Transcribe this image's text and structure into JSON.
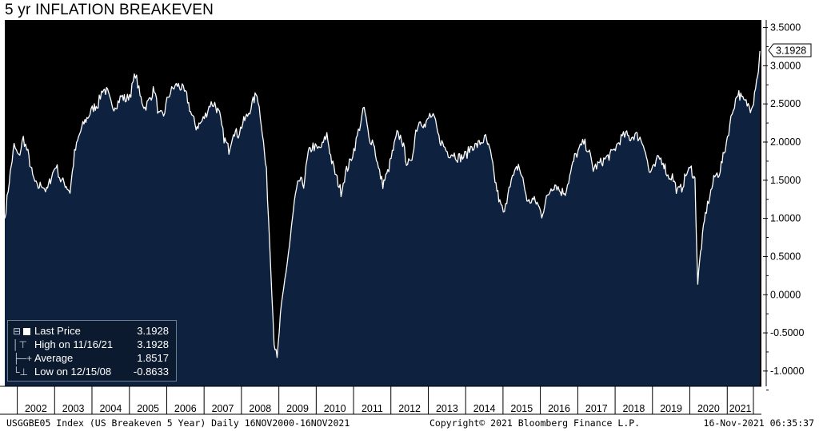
{
  "title": "5 yr INFLATION BREAKEVEN",
  "footer": {
    "left": "USGGBE05 Index (US Breakeven 5 Year)  Daily 16NOV2000-16NOV2021",
    "center": "Copyright© 2021 Bloomberg Finance L.P.",
    "right": "16-Nov-2021 06:35:37"
  },
  "legend": {
    "items": [
      {
        "label": "Last Price",
        "value": "3.1928",
        "icon": "white-square-icon"
      },
      {
        "label": "High on 11/16/21",
        "value": "3.1928",
        "icon": "high-marker-icon"
      },
      {
        "label": "Average",
        "value": "1.8517",
        "icon": "average-line-icon"
      },
      {
        "label": "Low on 12/15/08",
        "value": "-0.8633",
        "icon": "low-marker-icon"
      }
    ]
  },
  "colors": {
    "plot_background": "#000000",
    "area_fill": "#0e2240",
    "line": "#ffffff",
    "axis_text": "#ffffff",
    "page_background": "#ffffff"
  },
  "chart_data": {
    "type": "area",
    "title": "5 yr INFLATION BREAKEVEN",
    "series_name": "USGGBE05 Index",
    "xlabel": "",
    "ylabel": "",
    "xlim": [
      "2001-09-01",
      "2021-12-01"
    ],
    "ylim": [
      -1.2,
      3.6
    ],
    "y_ticks": [
      3.5,
      3.0,
      2.5,
      2.0,
      1.5,
      1.0,
      0.5,
      0.0,
      -0.5,
      -1.0
    ],
    "y_tick_labels": [
      "3.5000",
      "3.0000",
      "2.5000",
      "2.0000",
      "1.5000",
      "1.0000",
      "0.5000",
      "0.0000",
      "-0.5000",
      "-1.0000"
    ],
    "x_tick_labels": [
      "2002",
      "2003",
      "2004",
      "2005",
      "2006",
      "2007",
      "2008",
      "2009",
      "2010",
      "2011",
      "2012",
      "2013",
      "2014",
      "2015",
      "2016",
      "2017",
      "2018",
      "2019",
      "2020",
      "2021"
    ],
    "last_value_label": "3.1928",
    "grid": false,
    "legend_position": "bottom-left",
    "points": [
      [
        "2001-09-01",
        1.0
      ],
      [
        "2001-10-15",
        1.5
      ],
      [
        "2001-12-01",
        1.95
      ],
      [
        "2002-01-15",
        1.8
      ],
      [
        "2002-03-01",
        2.05
      ],
      [
        "2002-04-15",
        1.85
      ],
      [
        "2002-06-01",
        1.55
      ],
      [
        "2002-07-15",
        1.4
      ],
      [
        "2002-09-01",
        1.45
      ],
      [
        "2002-10-15",
        1.35
      ],
      [
        "2002-12-01",
        1.55
      ],
      [
        "2003-01-15",
        1.7
      ],
      [
        "2003-03-01",
        1.5
      ],
      [
        "2003-04-15",
        1.45
      ],
      [
        "2003-06-01",
        1.35
      ],
      [
        "2003-07-15",
        1.85
      ],
      [
        "2003-09-01",
        2.1
      ],
      [
        "2003-10-15",
        2.25
      ],
      [
        "2003-12-01",
        2.35
      ],
      [
        "2004-01-15",
        2.45
      ],
      [
        "2004-03-01",
        2.5
      ],
      [
        "2004-04-15",
        2.7
      ],
      [
        "2004-06-01",
        2.65
      ],
      [
        "2004-07-15",
        2.45
      ],
      [
        "2004-09-01",
        2.5
      ],
      [
        "2004-10-15",
        2.6
      ],
      [
        "2004-12-01",
        2.55
      ],
      [
        "2005-01-15",
        2.65
      ],
      [
        "2005-03-01",
        2.9
      ],
      [
        "2005-04-15",
        2.6
      ],
      [
        "2005-06-01",
        2.45
      ],
      [
        "2005-07-15",
        2.55
      ],
      [
        "2005-09-01",
        2.7
      ],
      [
        "2005-10-15",
        2.35
      ],
      [
        "2005-12-01",
        2.35
      ],
      [
        "2006-01-15",
        2.6
      ],
      [
        "2006-03-01",
        2.7
      ],
      [
        "2006-04-15",
        2.75
      ],
      [
        "2006-06-01",
        2.7
      ],
      [
        "2006-07-15",
        2.6
      ],
      [
        "2006-09-01",
        2.35
      ],
      [
        "2006-10-15",
        2.2
      ],
      [
        "2006-12-01",
        2.25
      ],
      [
        "2007-01-15",
        2.35
      ],
      [
        "2007-03-01",
        2.5
      ],
      [
        "2007-04-15",
        2.5
      ],
      [
        "2007-06-01",
        2.35
      ],
      [
        "2007-07-15",
        2.05
      ],
      [
        "2007-09-01",
        1.9
      ],
      [
        "2007-10-15",
        2.15
      ],
      [
        "2007-12-01",
        2.1
      ],
      [
        "2008-01-15",
        2.25
      ],
      [
        "2008-03-01",
        2.35
      ],
      [
        "2008-04-15",
        2.5
      ],
      [
        "2008-06-01",
        2.65
      ],
      [
        "2008-07-15",
        2.25
      ],
      [
        "2008-09-01",
        1.6
      ],
      [
        "2008-10-15",
        0.35
      ],
      [
        "2008-11-15",
        -0.6
      ],
      [
        "2008-12-15",
        -0.86
      ],
      [
        "2009-01-15",
        -0.3
      ],
      [
        "2009-03-01",
        0.2
      ],
      [
        "2009-04-15",
        0.65
      ],
      [
        "2009-06-01",
        1.2
      ],
      [
        "2009-07-15",
        1.5
      ],
      [
        "2009-09-01",
        1.45
      ],
      [
        "2009-10-15",
        1.85
      ],
      [
        "2009-12-01",
        1.95
      ],
      [
        "2010-01-15",
        1.9
      ],
      [
        "2010-03-01",
        1.95
      ],
      [
        "2010-04-15",
        2.1
      ],
      [
        "2010-06-01",
        1.75
      ],
      [
        "2010-07-15",
        1.55
      ],
      [
        "2010-09-01",
        1.35
      ],
      [
        "2010-10-15",
        1.6
      ],
      [
        "2010-12-01",
        1.75
      ],
      [
        "2011-01-15",
        1.95
      ],
      [
        "2011-03-01",
        2.2
      ],
      [
        "2011-04-15",
        2.45
      ],
      [
        "2011-06-01",
        2.05
      ],
      [
        "2011-07-15",
        2.0
      ],
      [
        "2011-09-01",
        1.65
      ],
      [
        "2011-10-15",
        1.45
      ],
      [
        "2011-12-01",
        1.6
      ],
      [
        "2012-01-15",
        1.85
      ],
      [
        "2012-03-01",
        2.1
      ],
      [
        "2012-04-15",
        2.05
      ],
      [
        "2012-06-01",
        1.75
      ],
      [
        "2012-07-15",
        1.7
      ],
      [
        "2012-09-01",
        2.15
      ],
      [
        "2012-10-15",
        2.3
      ],
      [
        "2012-12-01",
        2.2
      ],
      [
        "2013-01-15",
        2.35
      ],
      [
        "2013-03-01",
        2.3
      ],
      [
        "2013-04-15",
        2.05
      ],
      [
        "2013-06-01",
        1.95
      ],
      [
        "2013-07-15",
        1.85
      ],
      [
        "2013-09-01",
        1.85
      ],
      [
        "2013-10-15",
        1.8
      ],
      [
        "2013-12-01",
        1.8
      ],
      [
        "2014-01-15",
        1.85
      ],
      [
        "2014-03-01",
        1.95
      ],
      [
        "2014-04-15",
        1.95
      ],
      [
        "2014-06-01",
        2.0
      ],
      [
        "2014-07-15",
        2.05
      ],
      [
        "2014-09-01",
        1.85
      ],
      [
        "2014-10-15",
        1.5
      ],
      [
        "2014-12-01",
        1.2
      ],
      [
        "2015-01-15",
        1.05
      ],
      [
        "2015-03-01",
        1.45
      ],
      [
        "2015-04-15",
        1.55
      ],
      [
        "2015-06-01",
        1.7
      ],
      [
        "2015-07-15",
        1.5
      ],
      [
        "2015-09-01",
        1.2
      ],
      [
        "2015-10-15",
        1.25
      ],
      [
        "2015-12-01",
        1.2
      ],
      [
        "2016-01-15",
        1.05
      ],
      [
        "2016-03-01",
        1.25
      ],
      [
        "2016-04-15",
        1.4
      ],
      [
        "2016-06-01",
        1.45
      ],
      [
        "2016-07-15",
        1.35
      ],
      [
        "2016-09-01",
        1.35
      ],
      [
        "2016-10-15",
        1.55
      ],
      [
        "2016-12-01",
        1.8
      ],
      [
        "2017-01-15",
        1.9
      ],
      [
        "2017-03-01",
        2.0
      ],
      [
        "2017-04-15",
        1.9
      ],
      [
        "2017-06-01",
        1.65
      ],
      [
        "2017-07-15",
        1.7
      ],
      [
        "2017-09-01",
        1.75
      ],
      [
        "2017-10-15",
        1.8
      ],
      [
        "2017-12-01",
        1.85
      ],
      [
        "2018-01-15",
        1.95
      ],
      [
        "2018-03-01",
        2.05
      ],
      [
        "2018-04-15",
        2.1
      ],
      [
        "2018-06-01",
        2.05
      ],
      [
        "2018-07-15",
        2.1
      ],
      [
        "2018-09-01",
        2.05
      ],
      [
        "2018-10-15",
        1.95
      ],
      [
        "2018-12-01",
        1.6
      ],
      [
        "2019-01-15",
        1.65
      ],
      [
        "2019-03-01",
        1.8
      ],
      [
        "2019-04-15",
        1.75
      ],
      [
        "2019-06-01",
        1.55
      ],
      [
        "2019-07-15",
        1.55
      ],
      [
        "2019-09-01",
        1.35
      ],
      [
        "2019-10-15",
        1.4
      ],
      [
        "2019-12-01",
        1.6
      ],
      [
        "2020-01-15",
        1.65
      ],
      [
        "2020-02-20",
        1.5
      ],
      [
        "2020-03-19",
        0.15
      ],
      [
        "2020-04-15",
        0.55
      ],
      [
        "2020-06-01",
        1.05
      ],
      [
        "2020-07-15",
        1.3
      ],
      [
        "2020-09-01",
        1.55
      ],
      [
        "2020-10-15",
        1.6
      ],
      [
        "2020-12-01",
        1.85
      ],
      [
        "2021-01-15",
        2.15
      ],
      [
        "2021-03-01",
        2.45
      ],
      [
        "2021-04-15",
        2.65
      ],
      [
        "2021-06-01",
        2.55
      ],
      [
        "2021-07-15",
        2.5
      ],
      [
        "2021-08-15",
        2.45
      ],
      [
        "2021-09-15",
        2.55
      ],
      [
        "2021-10-15",
        2.85
      ],
      [
        "2021-11-01",
        2.9
      ],
      [
        "2021-11-16",
        3.1928
      ]
    ]
  }
}
